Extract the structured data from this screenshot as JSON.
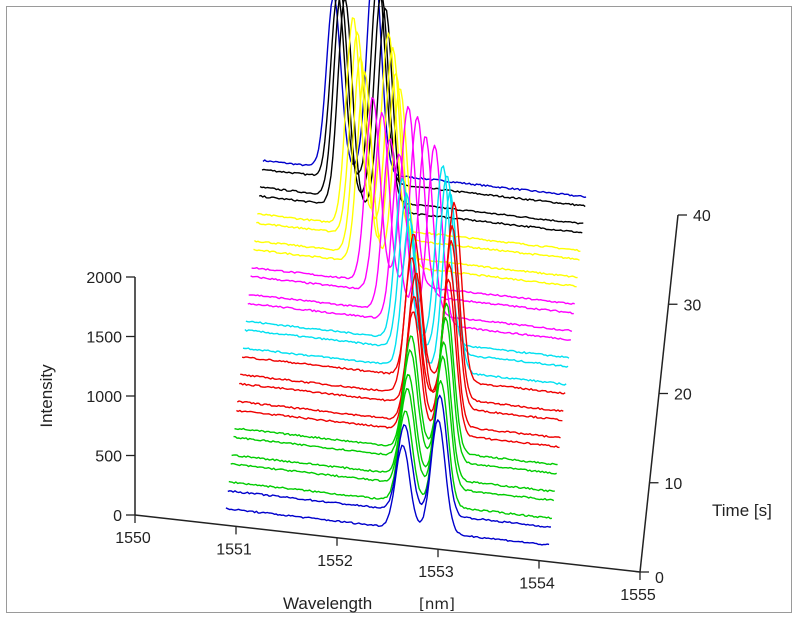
{
  "chart_data": {
    "type": "line",
    "subtype": "waterfall-3d",
    "xlabel": "Wavelength",
    "xunit": "[nm]",
    "ylabel": "Intensity",
    "zlabel": "Time [s]",
    "x_ticks": [
      "1550",
      "1551",
      "1552",
      "1553",
      "1554",
      "1555"
    ],
    "y_ticks": [
      "0",
      "500",
      "1000",
      "1500",
      "2000"
    ],
    "z_ticks": [
      "0",
      "10",
      "20",
      "30",
      "40"
    ],
    "xlim": [
      1550,
      1555
    ],
    "ylim": [
      0,
      2000
    ],
    "zlim": [
      0,
      40
    ],
    "grid": false,
    "legend": "none",
    "series_note_colors": [
      "#0000cc",
      "#00cc00",
      "#ee0000",
      "#00e0f0",
      "#ff00ff",
      "#ffff00",
      "#000000"
    ],
    "series": [
      {
        "time": 0,
        "color": "#0000cc",
        "peaks": [
          {
            "wl": 1552.65,
            "h": 700
          },
          {
            "wl": 1553.0,
            "h": 950
          }
        ],
        "baseline": 140
      },
      {
        "time": 2,
        "color": "#0000cc",
        "peaks": [
          {
            "wl": 1552.65,
            "h": 720
          },
          {
            "wl": 1553.0,
            "h": 1000
          }
        ],
        "baseline": 140
      },
      {
        "time": 3,
        "color": "#00cc00",
        "peaks": [
          {
            "wl": 1552.65,
            "h": 760
          },
          {
            "wl": 1553.0,
            "h": 1050
          }
        ],
        "baseline": 140
      },
      {
        "time": 5,
        "color": "#00cc00",
        "peaks": [
          {
            "wl": 1552.65,
            "h": 800
          },
          {
            "wl": 1553.0,
            "h": 1100
          }
        ],
        "baseline": 140
      },
      {
        "time": 6,
        "color": "#00cc00",
        "peaks": [
          {
            "wl": 1552.65,
            "h": 850
          },
          {
            "wl": 1553.0,
            "h": 1150
          }
        ],
        "baseline": 140
      },
      {
        "time": 8,
        "color": "#00cc00",
        "peaks": [
          {
            "wl": 1552.65,
            "h": 900
          },
          {
            "wl": 1553.0,
            "h": 1200
          }
        ],
        "baseline": 140
      },
      {
        "time": 9,
        "color": "#00cc00",
        "peaks": [
          {
            "wl": 1552.65,
            "h": 950
          },
          {
            "wl": 1553.0,
            "h": 1250
          }
        ],
        "baseline": 140
      },
      {
        "time": 11,
        "color": "#ee0000",
        "peaks": [
          {
            "wl": 1552.65,
            "h": 1000
          },
          {
            "wl": 1553.0,
            "h": 1300
          }
        ],
        "baseline": 140
      },
      {
        "time": 12,
        "color": "#ee0000",
        "peaks": [
          {
            "wl": 1552.65,
            "h": 1050
          },
          {
            "wl": 1553.0,
            "h": 1350
          }
        ],
        "baseline": 140
      },
      {
        "time": 14,
        "color": "#ee0000",
        "peaks": [
          {
            "wl": 1552.65,
            "h": 1100
          },
          {
            "wl": 1553.0,
            "h": 1400
          }
        ],
        "baseline": 140
      },
      {
        "time": 15,
        "color": "#ee0000",
        "peaks": [
          {
            "wl": 1552.6,
            "h": 1150
          },
          {
            "wl": 1553.0,
            "h": 1450
          }
        ],
        "baseline": 140
      },
      {
        "time": 17,
        "color": "#ee0000",
        "peaks": [
          {
            "wl": 1552.6,
            "h": 1200
          },
          {
            "wl": 1553.0,
            "h": 1500
          }
        ],
        "baseline": 140
      },
      {
        "time": 18,
        "color": "#00e0f0",
        "peaks": [
          {
            "wl": 1552.55,
            "h": 1250
          },
          {
            "wl": 1552.95,
            "h": 1500
          }
        ],
        "baseline": 140
      },
      {
        "time": 20,
        "color": "#00e0f0",
        "peaks": [
          {
            "wl": 1552.5,
            "h": 1300
          },
          {
            "wl": 1552.9,
            "h": 1500
          }
        ],
        "baseline": 140
      },
      {
        "time": 21,
        "color": "#00e0f0",
        "peaks": [
          {
            "wl": 1552.45,
            "h": 1350
          },
          {
            "wl": 1552.85,
            "h": 1500
          }
        ],
        "baseline": 140
      },
      {
        "time": 23,
        "color": "#ff00ff",
        "peaks": [
          {
            "wl": 1552.4,
            "h": 1400
          },
          {
            "wl": 1552.75,
            "h": 1500
          }
        ],
        "baseline": 140
      },
      {
        "time": 24,
        "color": "#ff00ff",
        "peaks": [
          {
            "wl": 1552.3,
            "h": 1450
          },
          {
            "wl": 1552.65,
            "h": 1500
          }
        ],
        "baseline": 140
      },
      {
        "time": 26,
        "color": "#ff00ff",
        "peaks": [
          {
            "wl": 1552.2,
            "h": 1500
          },
          {
            "wl": 1552.55,
            "h": 1500
          }
        ],
        "baseline": 140
      },
      {
        "time": 27,
        "color": "#ff00ff",
        "peaks": [
          {
            "wl": 1552.1,
            "h": 1550
          },
          {
            "wl": 1552.45,
            "h": 1500
          }
        ],
        "baseline": 140
      },
      {
        "time": 29,
        "color": "#ffff00",
        "peaks": [
          {
            "wl": 1552.0,
            "h": 1600
          },
          {
            "wl": 1552.35,
            "h": 1500
          }
        ],
        "baseline": 140
      },
      {
        "time": 30,
        "color": "#ffff00",
        "peaks": [
          {
            "wl": 1551.95,
            "h": 1650
          },
          {
            "wl": 1552.3,
            "h": 1550
          }
        ],
        "baseline": 140
      },
      {
        "time": 32,
        "color": "#ffff00",
        "peaks": [
          {
            "wl": 1551.9,
            "h": 1700
          },
          {
            "wl": 1552.25,
            "h": 1600
          }
        ],
        "baseline": 140
      },
      {
        "time": 33,
        "color": "#ffff00",
        "peaks": [
          {
            "wl": 1551.85,
            "h": 1750
          },
          {
            "wl": 1552.2,
            "h": 1650
          }
        ],
        "baseline": 140
      },
      {
        "time": 35,
        "color": "#000000",
        "peaks": [
          {
            "wl": 1551.75,
            "h": 1750
          },
          {
            "wl": 1552.15,
            "h": 1700
          }
        ],
        "baseline": 140
      },
      {
        "time": 36,
        "color": "#000000",
        "peaks": [
          {
            "wl": 1551.7,
            "h": 1700
          },
          {
            "wl": 1552.1,
            "h": 1750
          }
        ],
        "baseline": 140
      },
      {
        "time": 38,
        "color": "#000000",
        "peaks": [
          {
            "wl": 1551.65,
            "h": 1550
          },
          {
            "wl": 1552.05,
            "h": 1750
          }
        ],
        "baseline": 140
      },
      {
        "time": 39,
        "color": "#0000cc",
        "peaks": [
          {
            "wl": 1551.6,
            "h": 1450
          },
          {
            "wl": 1552.0,
            "h": 1800
          }
        ],
        "baseline": 140
      }
    ]
  }
}
